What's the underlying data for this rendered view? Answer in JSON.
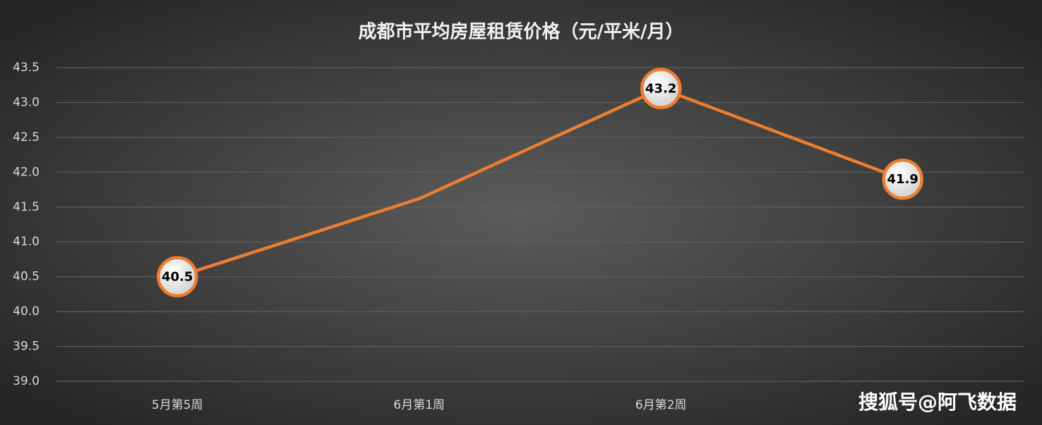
{
  "chart_data": {
    "type": "line",
    "title": "成都市平均房屋租赁价格（元/平米/月）",
    "categories": [
      "5月第5周",
      "6月第1周",
      "6月第2周",
      null
    ],
    "values": [
      40.5,
      41.62,
      43.2,
      41.9
    ],
    "value_labels": [
      "40.5",
      null,
      "43.2",
      "41.9"
    ],
    "color": "#ed7d31",
    "ylim": [
      39,
      43.5
    ],
    "yticks": [
      {
        "value": 39,
        "label": "39.0"
      },
      39.5,
      {
        "value": 40,
        "label": "40.0"
      },
      40.5,
      {
        "value": 41,
        "label": "41.0"
      },
      41.5,
      {
        "value": 42,
        "label": "42.0"
      },
      42.5,
      {
        "value": 43,
        "label": "43.0"
      },
      43.5
    ],
    "grid": true,
    "watermark": "搜狐号@阿飞数据"
  }
}
